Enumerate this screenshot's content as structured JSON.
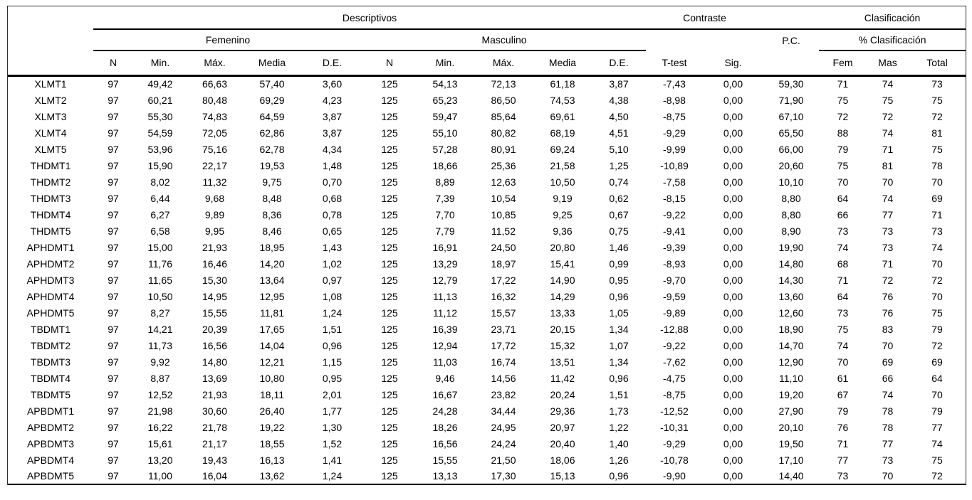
{
  "colors": {
    "background": "#ffffff",
    "text": "#000000",
    "rules": "#000000",
    "frame": "#2f2f2f"
  },
  "table": {
    "group_headers": {
      "descriptivos": "Descriptivos",
      "contraste": "Contraste",
      "clasificacion": "Clasificación"
    },
    "subgroup_headers": {
      "femenino": "Femenino",
      "masculino": "Masculino",
      "pc": "P.C.",
      "pct_clasificacion": "% Clasificación"
    },
    "sub_columns": [
      "N",
      "Min.",
      "Máx.",
      "Media",
      "D.E.",
      "N",
      "Min.",
      "Máx.",
      "Media",
      "D.E.",
      "T-test",
      "Sig.",
      "",
      "Fem",
      "Mas",
      "Total"
    ],
    "rows": [
      {
        "label": "XLMT1",
        "values": [
          "97",
          "49,42",
          "66,63",
          "57,40",
          "3,60",
          "125",
          "54,13",
          "72,13",
          "61,18",
          "3,87",
          "-7,43",
          "0,00",
          "59,30",
          "71",
          "74",
          "73"
        ]
      },
      {
        "label": "XLMT2",
        "values": [
          "97",
          "60,21",
          "80,48",
          "69,29",
          "4,23",
          "125",
          "65,23",
          "86,50",
          "74,53",
          "4,38",
          "-8,98",
          "0,00",
          "71,90",
          "75",
          "75",
          "75"
        ]
      },
      {
        "label": "XLMT3",
        "values": [
          "97",
          "55,30",
          "74,83",
          "64,59",
          "3,87",
          "125",
          "59,47",
          "85,64",
          "69,61",
          "4,50",
          "-8,75",
          "0,00",
          "67,10",
          "72",
          "72",
          "72"
        ]
      },
      {
        "label": "XLMT4",
        "values": [
          "97",
          "54,59",
          "72,05",
          "62,86",
          "3,87",
          "125",
          "55,10",
          "80,82",
          "68,19",
          "4,51",
          "-9,29",
          "0,00",
          "65,50",
          "88",
          "74",
          "81"
        ]
      },
      {
        "label": "XLMT5",
        "values": [
          "97",
          "53,96",
          "75,16",
          "62,78",
          "4,34",
          "125",
          "57,28",
          "80,91",
          "69,24",
          "5,10",
          "-9,99",
          "0,00",
          "66,00",
          "79",
          "71",
          "75"
        ]
      },
      {
        "label": "THDMT1",
        "values": [
          "97",
          "15,90",
          "22,17",
          "19,53",
          "1,48",
          "125",
          "18,66",
          "25,36",
          "21,58",
          "1,25",
          "-10,89",
          "0,00",
          "20,60",
          "75",
          "81",
          "78"
        ]
      },
      {
        "label": "THDMT2",
        "values": [
          "97",
          "8,02",
          "11,32",
          "9,75",
          "0,70",
          "125",
          "8,89",
          "12,63",
          "10,50",
          "0,74",
          "-7,58",
          "0,00",
          "10,10",
          "70",
          "70",
          "70"
        ]
      },
      {
        "label": "THDMT3",
        "values": [
          "97",
          "6,44",
          "9,68",
          "8,48",
          "0,68",
          "125",
          "7,39",
          "10,54",
          "9,19",
          "0,62",
          "-8,15",
          "0,00",
          "8,80",
          "64",
          "74",
          "69"
        ]
      },
      {
        "label": "THDMT4",
        "values": [
          "97",
          "6,27",
          "9,89",
          "8,36",
          "0,78",
          "125",
          "7,70",
          "10,85",
          "9,25",
          "0,67",
          "-9,22",
          "0,00",
          "8,80",
          "66",
          "77",
          "71"
        ]
      },
      {
        "label": "THDMT5",
        "values": [
          "97",
          "6,58",
          "9,95",
          "8,46",
          "0,65",
          "125",
          "7,79",
          "11,52",
          "9,36",
          "0,75",
          "-9,41",
          "0,00",
          "8,90",
          "73",
          "73",
          "73"
        ]
      },
      {
        "label": "APHDMT1",
        "values": [
          "97",
          "15,00",
          "21,93",
          "18,95",
          "1,43",
          "125",
          "16,91",
          "24,50",
          "20,80",
          "1,46",
          "-9,39",
          "0,00",
          "19,90",
          "74",
          "73",
          "74"
        ]
      },
      {
        "label": "APHDMT2",
        "values": [
          "97",
          "11,76",
          "16,46",
          "14,20",
          "1,02",
          "125",
          "13,29",
          "18,97",
          "15,41",
          "0,99",
          "-8,93",
          "0,00",
          "14,80",
          "68",
          "71",
          "70"
        ]
      },
      {
        "label": "APHDMT3",
        "values": [
          "97",
          "11,65",
          "15,30",
          "13,64",
          "0,97",
          "125",
          "12,79",
          "17,22",
          "14,90",
          "0,95",
          "-9,70",
          "0,00",
          "14,30",
          "71",
          "72",
          "72"
        ]
      },
      {
        "label": "APHDMT4",
        "values": [
          "97",
          "10,50",
          "14,95",
          "12,95",
          "1,08",
          "125",
          "11,13",
          "16,32",
          "14,29",
          "0,96",
          "-9,59",
          "0,00",
          "13,60",
          "64",
          "76",
          "70"
        ]
      },
      {
        "label": "APHDMT5",
        "values": [
          "97",
          "8,27",
          "15,55",
          "11,81",
          "1,24",
          "125",
          "11,12",
          "15,57",
          "13,33",
          "1,05",
          "-9,89",
          "0,00",
          "12,60",
          "73",
          "76",
          "75"
        ]
      },
      {
        "label": "TBDMT1",
        "values": [
          "97",
          "14,21",
          "20,39",
          "17,65",
          "1,51",
          "125",
          "16,39",
          "23,71",
          "20,15",
          "1,34",
          "-12,88",
          "0,00",
          "18,90",
          "75",
          "83",
          "79"
        ]
      },
      {
        "label": "TBDMT2",
        "values": [
          "97",
          "11,73",
          "16,56",
          "14,04",
          "0,96",
          "125",
          "12,94",
          "17,72",
          "15,32",
          "1,07",
          "-9,22",
          "0,00",
          "14,70",
          "74",
          "70",
          "72"
        ]
      },
      {
        "label": "TBDMT3",
        "values": [
          "97",
          "9,92",
          "14,80",
          "12,21",
          "1,15",
          "125",
          "11,03",
          "16,74",
          "13,51",
          "1,34",
          "-7,62",
          "0,00",
          "12,90",
          "70",
          "69",
          "69"
        ]
      },
      {
        "label": "TBDMT4",
        "values": [
          "97",
          "8,87",
          "13,69",
          "10,80",
          "0,95",
          "125",
          "9,46",
          "14,56",
          "11,42",
          "0,96",
          "-4,75",
          "0,00",
          "11,10",
          "61",
          "66",
          "64"
        ]
      },
      {
        "label": "TBDMT5",
        "values": [
          "97",
          "12,52",
          "21,93",
          "18,11",
          "2,01",
          "125",
          "16,67",
          "23,82",
          "20,24",
          "1,51",
          "-8,75",
          "0,00",
          "19,20",
          "67",
          "74",
          "70"
        ]
      },
      {
        "label": "APBDMT1",
        "values": [
          "97",
          "21,98",
          "30,60",
          "26,40",
          "1,77",
          "125",
          "24,28",
          "34,44",
          "29,36",
          "1,73",
          "-12,52",
          "0,00",
          "27,90",
          "79",
          "78",
          "79"
        ]
      },
      {
        "label": "APBDMT2",
        "values": [
          "97",
          "16,22",
          "21,78",
          "19,22",
          "1,30",
          "125",
          "18,26",
          "24,95",
          "20,97",
          "1,22",
          "-10,31",
          "0,00",
          "20,10",
          "76",
          "78",
          "77"
        ]
      },
      {
        "label": "APBDMT3",
        "values": [
          "97",
          "15,61",
          "21,17",
          "18,55",
          "1,52",
          "125",
          "16,56",
          "24,24",
          "20,40",
          "1,40",
          "-9,29",
          "0,00",
          "19,50",
          "71",
          "77",
          "74"
        ]
      },
      {
        "label": "APBDMT4",
        "values": [
          "97",
          "13,20",
          "19,43",
          "16,13",
          "1,41",
          "125",
          "15,55",
          "21,50",
          "18,06",
          "1,26",
          "-10,78",
          "0,00",
          "17,10",
          "77",
          "73",
          "75"
        ]
      },
      {
        "label": "APBDMT5",
        "values": [
          "97",
          "11,00",
          "16,04",
          "13,62",
          "1,24",
          "125",
          "13,13",
          "17,30",
          "15,13",
          "0,96",
          "-9,90",
          "0,00",
          "14,40",
          "73",
          "70",
          "72"
        ]
      }
    ]
  }
}
